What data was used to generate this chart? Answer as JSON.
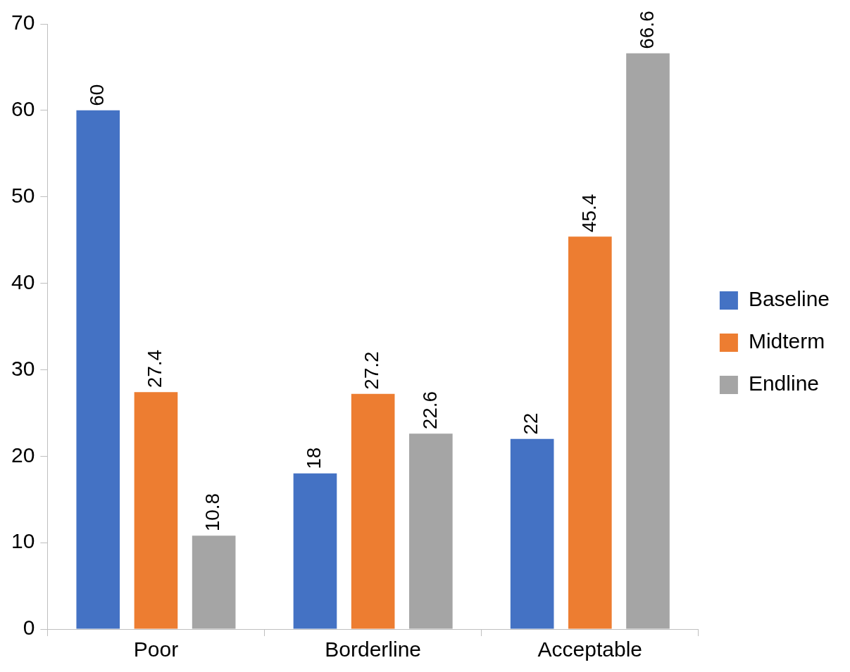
{
  "chart_data": {
    "type": "bar",
    "categories": [
      "Poor",
      "Borderline",
      "Acceptable"
    ],
    "series": [
      {
        "name": "Baseline",
        "color": "#4472c4",
        "values": [
          60,
          18,
          22
        ]
      },
      {
        "name": "Midterm",
        "color": "#ed7d31",
        "values": [
          27.4,
          27.2,
          45.4
        ]
      },
      {
        "name": "Endline",
        "color": "#a5a5a5",
        "values": [
          10.8,
          22.6,
          66.6
        ]
      }
    ],
    "ylim": [
      0,
      70
    ],
    "yticks": [
      0,
      10,
      20,
      30,
      40,
      50,
      60,
      70
    ],
    "grid": false,
    "legend": "right",
    "data_labels": true
  }
}
